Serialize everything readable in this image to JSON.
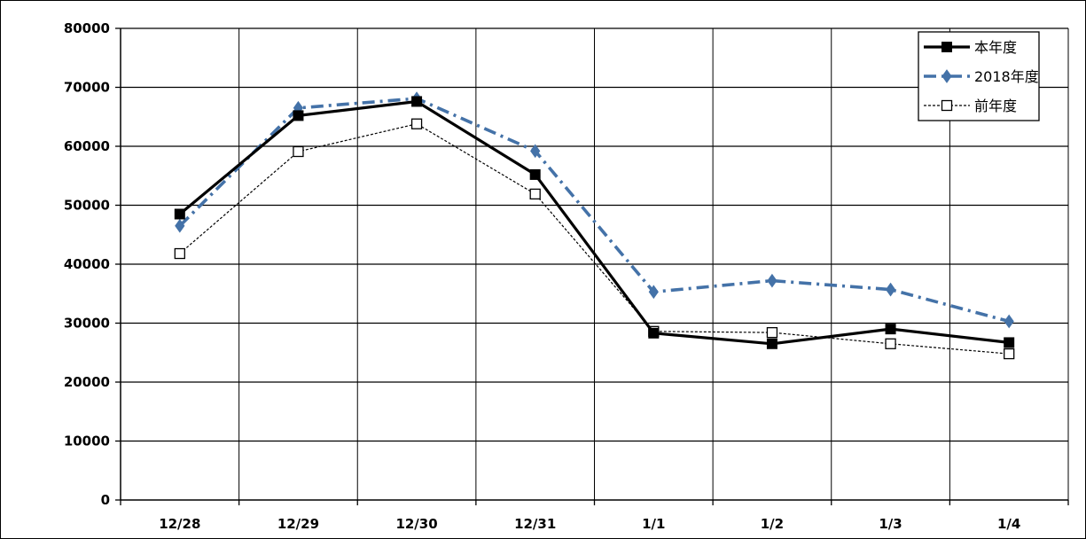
{
  "chart_data": {
    "type": "line",
    "categories": [
      "12/28",
      "12/29",
      "12/30",
      "12/31",
      "1/1",
      "1/2",
      "1/3",
      "1/4"
    ],
    "ylim": [
      0,
      80000
    ],
    "yticks": [
      0,
      10000,
      20000,
      30000,
      40000,
      50000,
      60000,
      70000,
      80000
    ],
    "grid": true,
    "legend_position": "top-right",
    "series": [
      {
        "name": "本年度",
        "color": "#000000",
        "style": "solid",
        "marker": "filled-square",
        "values": [
          48500,
          65200,
          67600,
          55200,
          28300,
          26500,
          29000,
          26700
        ]
      },
      {
        "name": "2018年度",
        "color": "#4472a8",
        "style": "dash-dot",
        "marker": "diamond",
        "values": [
          46500,
          66500,
          68100,
          59200,
          35300,
          37200,
          35700,
          30300
        ]
      },
      {
        "name": "前年度",
        "color": "#000000",
        "style": "dotted",
        "marker": "open-square",
        "values": [
          41800,
          59100,
          63800,
          51900,
          28600,
          28400,
          26500,
          24800
        ]
      }
    ]
  }
}
